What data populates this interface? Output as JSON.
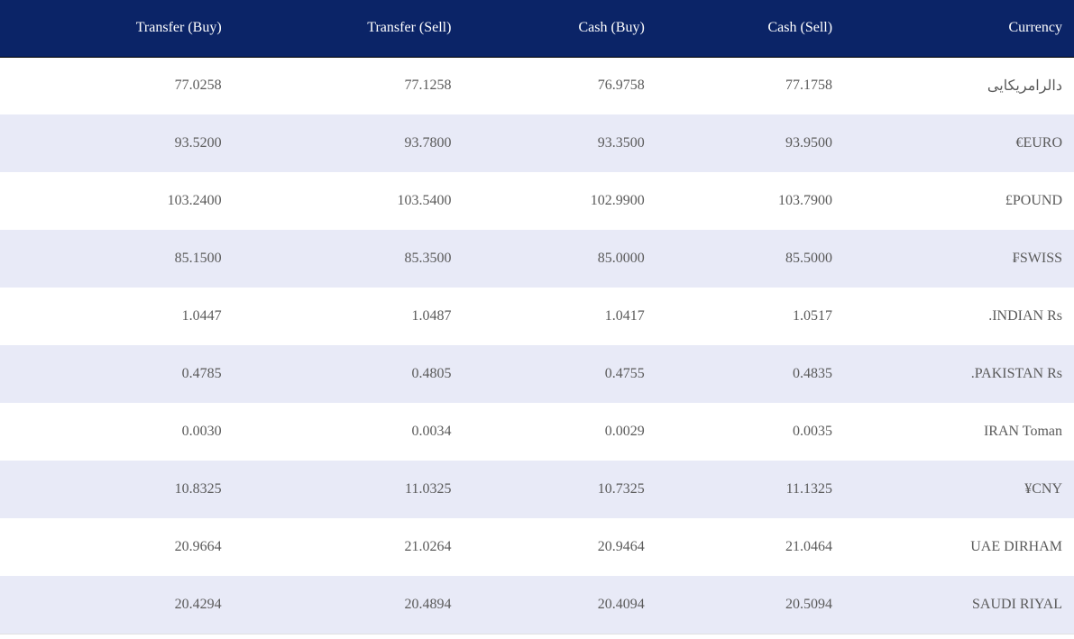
{
  "table": {
    "headers": [
      "Transfer (Buy)",
      "Transfer (Sell)",
      "Cash (Buy)",
      "Cash (Sell)",
      "Currency"
    ],
    "rows": [
      [
        "77.0258",
        "77.1258",
        "76.9758",
        "77.1758",
        "دالرامریکایی"
      ],
      [
        "93.5200",
        "93.7800",
        "93.3500",
        "93.9500",
        "€EURO"
      ],
      [
        "103.2400",
        "103.5400",
        "102.9900",
        "103.7900",
        "£POUND"
      ],
      [
        "85.1500",
        "85.3500",
        "85.0000",
        "85.5000",
        "₣SWISS"
      ],
      [
        "1.0447",
        "1.0487",
        "1.0417",
        "1.0517",
        ".INDIAN Rs"
      ],
      [
        "0.4785",
        "0.4805",
        "0.4755",
        "0.4835",
        ".PAKISTAN Rs"
      ],
      [
        "0.0030",
        "0.0034",
        "0.0029",
        "0.0035",
        "IRAN Toman"
      ],
      [
        "10.8325",
        "11.0325",
        "10.7325",
        "11.1325",
        "¥CNY"
      ],
      [
        "20.9664",
        "21.0264",
        "20.9464",
        "21.0464",
        "UAE DIRHAM"
      ],
      [
        "20.4294",
        "20.4894",
        "20.4094",
        "20.5094",
        "SAUDI RIYAL"
      ]
    ]
  }
}
